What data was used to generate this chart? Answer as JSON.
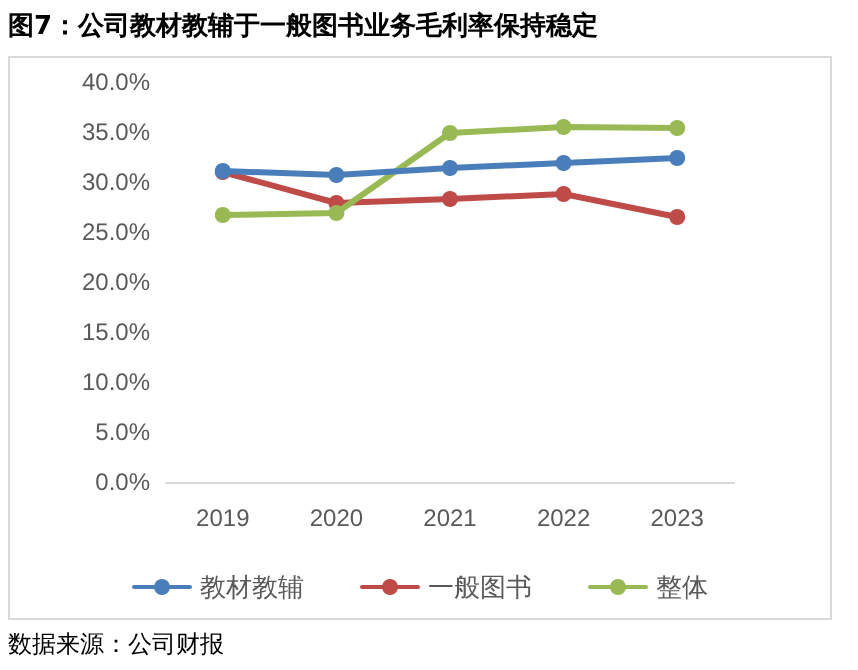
{
  "chart_data": {
    "type": "line",
    "title": "图7：公司教材教辅于一般图书业务毛利率保持稳定",
    "annotations": [
      "数据来源：公司财报"
    ],
    "categories": [
      "2019",
      "2020",
      "2021",
      "2022",
      "2023"
    ],
    "series": [
      {
        "name": "教材教辅",
        "color": "#4a7ebb",
        "values": [
          31.1,
          30.7,
          31.4,
          31.9,
          32.4
        ]
      },
      {
        "name": "一般图书",
        "color": "#be4b48",
        "values": [
          31.0,
          27.9,
          28.3,
          28.8,
          26.5
        ]
      },
      {
        "name": "整体",
        "color": "#98b954",
        "values": [
          26.7,
          26.9,
          34.9,
          35.5,
          35.4
        ]
      }
    ],
    "ylim": [
      0,
      40
    ],
    "yticks": [
      {
        "value": 0,
        "label": "0.0%"
      },
      {
        "value": 5,
        "label": "5.0%"
      },
      {
        "value": 10,
        "label": "10.0%"
      },
      {
        "value": 15,
        "label": "15.0%"
      },
      {
        "value": 20,
        "label": "20.0%"
      },
      {
        "value": 25,
        "label": "25.0%"
      },
      {
        "value": 30,
        "label": "30.0%"
      },
      {
        "value": 35,
        "label": "35.0%"
      },
      {
        "value": 40,
        "label": "40.0%"
      }
    ],
    "grid": false,
    "legend": "bottom",
    "marker": "circle",
    "line_style": "solid"
  }
}
